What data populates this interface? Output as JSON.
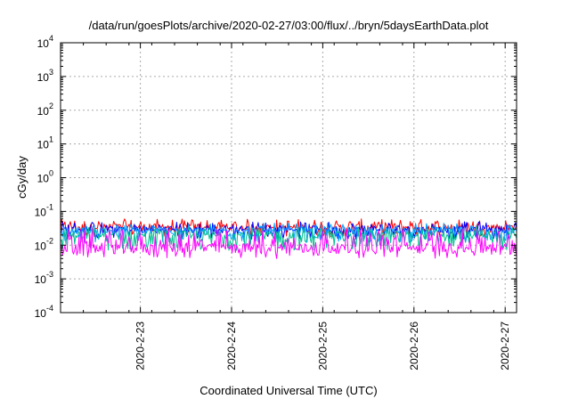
{
  "chart_data": {
    "type": "line",
    "title": "/data/run/goesPlots/archive/2020-02-27/03:00/flux/../bryn/5daysEarthData.plot",
    "xlabel": "Coordinated Universal Time (UTC)",
    "ylabel": "cGy/day",
    "yscale": "log",
    "ylim": [
      0.0001,
      10000
    ],
    "xlim": [
      "2020-02-22T03:00",
      "2020-02-27T03:00"
    ],
    "y_ticks": [
      {
        "exp": "4"
      },
      {
        "exp": "3"
      },
      {
        "exp": "2"
      },
      {
        "exp": "1"
      },
      {
        "exp": "0"
      },
      {
        "exp": "-1"
      },
      {
        "exp": "-2"
      },
      {
        "exp": "-3"
      },
      {
        "exp": "-4"
      }
    ],
    "y_tick_base": "10",
    "x_ticks": [
      "2020-2-23",
      "2020-2-24",
      "2020-2-25",
      "2020-2-26",
      "2020-2-27"
    ],
    "grid": true,
    "series": [
      {
        "color": "#ff0000",
        "min": 0.018,
        "max": 0.06,
        "typical": 0.035
      },
      {
        "color": "#0000ff",
        "min": 0.015,
        "max": 0.05,
        "typical": 0.03
      },
      {
        "color": "#00a0ff",
        "min": 0.012,
        "max": 0.045,
        "typical": 0.027
      },
      {
        "color": "#00c090",
        "min": 0.007,
        "max": 0.035,
        "typical": 0.02
      },
      {
        "color": "#ff00ff",
        "min": 0.004,
        "max": 0.03,
        "typical": 0.008
      }
    ]
  }
}
